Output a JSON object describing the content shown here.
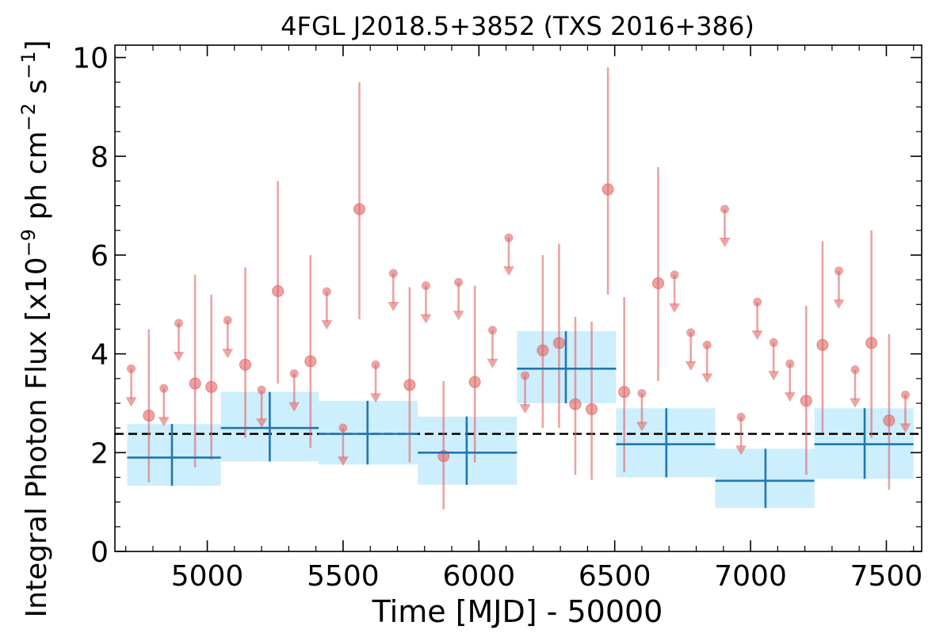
{
  "chart_data": {
    "type": "scatter",
    "title": "4FGL J2018.5+3852 (TXS 2016+386)",
    "xlabel": "Time [MJD] - 50000",
    "ylabel_parts": [
      "Integral Photon Flux [x10",
      "−9",
      " ph cm",
      "−2",
      " s",
      "−1",
      "]"
    ],
    "xlim": [
      4660,
      7630
    ],
    "ylim": [
      0,
      10.25
    ],
    "xticks": [
      5000,
      5500,
      6000,
      6500,
      7000,
      7500
    ],
    "xtick_labels": [
      "5000",
      "5500",
      "6000",
      "6500",
      "7000",
      "7500"
    ],
    "yticks": [
      0,
      2,
      4,
      6,
      8,
      10
    ],
    "ytick_labels": [
      "0",
      "2",
      "4",
      "6",
      "8",
      "10"
    ],
    "mean_flux": 2.38,
    "colors": {
      "points": "#e06666",
      "bins_fill": "#cdeefd",
      "bins_line": "#1f77b4",
      "mean_line": "#000000"
    },
    "detections": [
      {
        "x": 4785,
        "y": 2.75,
        "ylo": 1.4,
        "yhi": 4.5
      },
      {
        "x": 4955,
        "y": 3.4,
        "ylo": 1.7,
        "yhi": 5.6
      },
      {
        "x": 5015,
        "y": 3.33,
        "ylo": 1.85,
        "yhi": 5.2
      },
      {
        "x": 5140,
        "y": 3.78,
        "ylo": 2.3,
        "yhi": 5.75
      },
      {
        "x": 5260,
        "y": 5.27,
        "ylo": 3.4,
        "yhi": 7.5
      },
      {
        "x": 5380,
        "y": 3.85,
        "ylo": 2.1,
        "yhi": 6.0
      },
      {
        "x": 5560,
        "y": 6.93,
        "ylo": 4.7,
        "yhi": 9.5
      },
      {
        "x": 5745,
        "y": 3.37,
        "ylo": 1.8,
        "yhi": 5.35
      },
      {
        "x": 5870,
        "y": 1.93,
        "ylo": 0.85,
        "yhi": 3.45
      },
      {
        "x": 5985,
        "y": 3.43,
        "ylo": 1.8,
        "yhi": 5.38
      },
      {
        "x": 6235,
        "y": 4.07,
        "ylo": 2.5,
        "yhi": 6.0
      },
      {
        "x": 6295,
        "y": 4.22,
        "ylo": 2.5,
        "yhi": 6.23
      },
      {
        "x": 6355,
        "y": 2.98,
        "ylo": 1.55,
        "yhi": 4.75
      },
      {
        "x": 6415,
        "y": 2.88,
        "ylo": 1.45,
        "yhi": 4.65
      },
      {
        "x": 6475,
        "y": 7.33,
        "ylo": 5.2,
        "yhi": 9.8
      },
      {
        "x": 6535,
        "y": 3.23,
        "ylo": 1.6,
        "yhi": 5.15
      },
      {
        "x": 6660,
        "y": 5.43,
        "ylo": 3.45,
        "yhi": 7.78
      },
      {
        "x": 7205,
        "y": 3.05,
        "ylo": 1.55,
        "yhi": 4.97
      },
      {
        "x": 7265,
        "y": 4.18,
        "ylo": 2.4,
        "yhi": 6.28
      },
      {
        "x": 7445,
        "y": 4.22,
        "ylo": 2.3,
        "yhi": 6.5
      },
      {
        "x": 7510,
        "y": 2.65,
        "ylo": 1.25,
        "yhi": 4.4
      }
    ],
    "upper_limits": [
      {
        "x": 4720,
        "y": 3.7
      },
      {
        "x": 4840,
        "y": 3.3
      },
      {
        "x": 4895,
        "y": 4.62
      },
      {
        "x": 5075,
        "y": 4.68
      },
      {
        "x": 5200,
        "y": 3.27
      },
      {
        "x": 5320,
        "y": 3.6
      },
      {
        "x": 5440,
        "y": 5.26
      },
      {
        "x": 5500,
        "y": 2.5
      },
      {
        "x": 5620,
        "y": 3.78
      },
      {
        "x": 5685,
        "y": 5.63
      },
      {
        "x": 5805,
        "y": 5.38
      },
      {
        "x": 5925,
        "y": 5.45
      },
      {
        "x": 6050,
        "y": 4.48
      },
      {
        "x": 6110,
        "y": 6.35
      },
      {
        "x": 6170,
        "y": 3.56
      },
      {
        "x": 6600,
        "y": 3.2
      },
      {
        "x": 6720,
        "y": 5.6
      },
      {
        "x": 6780,
        "y": 4.43
      },
      {
        "x": 6840,
        "y": 4.18
      },
      {
        "x": 6905,
        "y": 6.93
      },
      {
        "x": 6965,
        "y": 2.72
      },
      {
        "x": 7025,
        "y": 5.05
      },
      {
        "x": 7085,
        "y": 4.23
      },
      {
        "x": 7145,
        "y": 3.8
      },
      {
        "x": 7325,
        "y": 5.68
      },
      {
        "x": 7385,
        "y": 3.68
      },
      {
        "x": 7570,
        "y": 3.17
      }
    ],
    "bins": [
      {
        "x0": 4705,
        "x1": 5050,
        "xc": 4870,
        "y": 1.9,
        "ylo": 1.33,
        "yhi": 2.58
      },
      {
        "x0": 5050,
        "x1": 5410,
        "xc": 5230,
        "y": 2.5,
        "ylo": 1.82,
        "yhi": 3.23
      },
      {
        "x0": 5410,
        "x1": 5775,
        "xc": 5590,
        "y": 2.38,
        "ylo": 1.76,
        "yhi": 3.05
      },
      {
        "x0": 5775,
        "x1": 6140,
        "xc": 5955,
        "y": 2.0,
        "ylo": 1.35,
        "yhi": 2.73
      },
      {
        "x0": 6140,
        "x1": 6505,
        "xc": 6320,
        "y": 3.7,
        "ylo": 3.0,
        "yhi": 4.46
      },
      {
        "x0": 6505,
        "x1": 6870,
        "xc": 6690,
        "y": 2.17,
        "ylo": 1.5,
        "yhi": 2.9
      },
      {
        "x0": 6870,
        "x1": 7235,
        "xc": 7055,
        "y": 1.43,
        "ylo": 0.88,
        "yhi": 2.08
      },
      {
        "x0": 7235,
        "x1": 7600,
        "xc": 7420,
        "y": 2.17,
        "ylo": 1.47,
        "yhi": 2.9
      }
    ]
  }
}
